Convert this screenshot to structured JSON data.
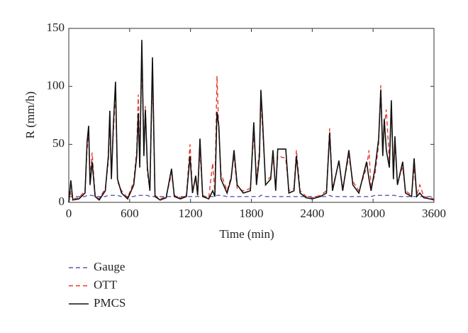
{
  "chart_data": {
    "type": "line",
    "xlabel": "Time (min)",
    "ylabel": "R (mm/h)",
    "xlim": [
      0,
      3600
    ],
    "xticks": [
      0,
      600,
      1200,
      1800,
      2400,
      3000,
      3600
    ],
    "ylim": [
      0,
      150
    ],
    "yticks": [
      0,
      50,
      100,
      150
    ],
    "legend": "below",
    "x": [
      0,
      20,
      40,
      100,
      160,
      180,
      196,
      210,
      230,
      260,
      300,
      360,
      390,
      405,
      420,
      440,
      461,
      480,
      520,
      580,
      640,
      670,
      685,
      700,
      720,
      740,
      755,
      775,
      800,
      825,
      850,
      900,
      960,
      1013,
      1040,
      1100,
      1160,
      1195,
      1220,
      1251,
      1270,
      1293,
      1320,
      1380,
      1419,
      1440,
      1461,
      1480,
      1500,
      1560,
      1600,
      1629,
      1660,
      1720,
      1790,
      1824,
      1850,
      1880,
      1894,
      1910,
      1940,
      1990,
      2013,
      2040,
      2060,
      2139,
      2170,
      2220,
      2244,
      2280,
      2340,
      2400,
      2480,
      2540,
      2572,
      2600,
      2663,
      2700,
      2761,
      2800,
      2860,
      2936,
      2960,
      2980,
      3020,
      3055,
      3076,
      3095,
      3110,
      3130,
      3160,
      3180,
      3200,
      3215,
      3240,
      3292,
      3320,
      3380,
      3404,
      3430,
      3460,
      3500,
      3560,
      3600
    ],
    "series": [
      {
        "name": "Gauge",
        "color": "#5a5ab4",
        "style": "dashed",
        "values": [
          5,
          5,
          5,
          5,
          5,
          6,
          6,
          6,
          6,
          5,
          5,
          5,
          6,
          6,
          6,
          6,
          6,
          6,
          5,
          5,
          5,
          6,
          6,
          6,
          6,
          6,
          6,
          6,
          5,
          5,
          5,
          5,
          5,
          5,
          5,
          5,
          5,
          5,
          5,
          5,
          5,
          5,
          5,
          5,
          5,
          5,
          6,
          6,
          6,
          5,
          5,
          5,
          5,
          5,
          5,
          5,
          5,
          5,
          6,
          6,
          5,
          5,
          5,
          5,
          5,
          5,
          5,
          5,
          5,
          5,
          5,
          5,
          5,
          5,
          6,
          5,
          5,
          5,
          5,
          5,
          5,
          5,
          5,
          5,
          6,
          6,
          6,
          6,
          6,
          6,
          6,
          6,
          6,
          6,
          5,
          5,
          5,
          5,
          5,
          5,
          5,
          5,
          5,
          5
        ]
      },
      {
        "name": "OTT",
        "color": "#e8382c",
        "style": "dashed",
        "values": [
          0,
          10,
          3,
          4,
          10,
          45,
          60,
          20,
          43,
          6,
          3,
          12,
          35,
          70,
          25,
          60,
          95,
          18,
          10,
          4,
          18,
          45,
          93,
          35,
          130,
          45,
          83,
          25,
          12,
          110,
          6,
          3,
          5,
          25,
          6,
          4,
          6,
          50,
          10,
          20,
          8,
          45,
          6,
          4,
          34,
          8,
          109,
          60,
          25,
          10,
          22,
          40,
          12,
          10,
          12,
          60,
          20,
          45,
          85,
          65,
          18,
          22,
          40,
          12,
          40,
          38,
          10,
          12,
          45,
          10,
          5,
          4,
          6,
          10,
          64,
          12,
          35,
          12,
          40,
          18,
          10,
          30,
          45,
          12,
          25,
          50,
          101,
          45,
          65,
          80,
          35,
          80,
          25,
          50,
          18,
          30,
          10,
          6,
          30,
          6,
          15,
          5,
          4,
          3
        ]
      },
      {
        "name": "PMCS",
        "color": "#111111",
        "style": "solid",
        "values": [
          0,
          19,
          2,
          3,
          8,
          52,
          66,
          15,
          35,
          5,
          2,
          10,
          40,
          79,
          20,
          67,
          104,
          20,
          8,
          3,
          15,
          40,
          77,
          30,
          140,
          40,
          80,
          30,
          10,
          125,
          5,
          2,
          4,
          29,
          5,
          3,
          5,
          40,
          8,
          23,
          6,
          55,
          5,
          3,
          10,
          5,
          78,
          65,
          20,
          8,
          20,
          45,
          15,
          8,
          10,
          69,
          15,
          40,
          97,
          72,
          15,
          20,
          45,
          10,
          46,
          46,
          8,
          10,
          40,
          8,
          4,
          3,
          5,
          8,
          60,
          10,
          36,
          10,
          45,
          15,
          8,
          35,
          20,
          10,
          30,
          55,
          97,
          40,
          72,
          45,
          30,
          88,
          20,
          57,
          15,
          35,
          8,
          5,
          38,
          5,
          8,
          4,
          3,
          2
        ]
      }
    ]
  }
}
